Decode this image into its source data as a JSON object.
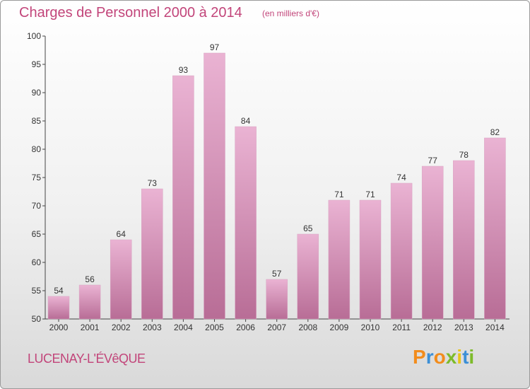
{
  "header": {
    "title": "Charges de Personnel 2000 à 2014",
    "subtitle": "(en milliers d'€)"
  },
  "footer": {
    "commune": "LUCENAY-L'ÉVêQUE",
    "logo": {
      "letters": [
        "P",
        "r",
        "o",
        "x",
        "i",
        "t",
        "i"
      ],
      "colors": [
        "#f28c1c",
        "#3c8fd6",
        "#f28c1c",
        "#7dbb2a",
        "#e8c51a",
        "#3c8fd6",
        "#7dbb2a"
      ]
    }
  },
  "colors": {
    "bar_light": "#eab3d3",
    "bar_dark": "#b86d96",
    "text": "#333333",
    "accent": "#c2457a"
  },
  "chart_data": {
    "type": "bar",
    "categories": [
      "2000",
      "2001",
      "2002",
      "2003",
      "2004",
      "2005",
      "2006",
      "2007",
      "2008",
      "2009",
      "2010",
      "2011",
      "2012",
      "2013",
      "2014"
    ],
    "values": [
      54,
      56,
      64,
      73,
      93,
      97,
      84,
      57,
      65,
      71,
      71,
      74,
      77,
      78,
      82
    ],
    "title": "Charges de Personnel 2000 à 2014",
    "ylim": [
      50,
      100
    ],
    "yticks": [
      50,
      55,
      60,
      65,
      70,
      75,
      80,
      85,
      90,
      95,
      100
    ],
    "grid": false,
    "legend": "none"
  }
}
